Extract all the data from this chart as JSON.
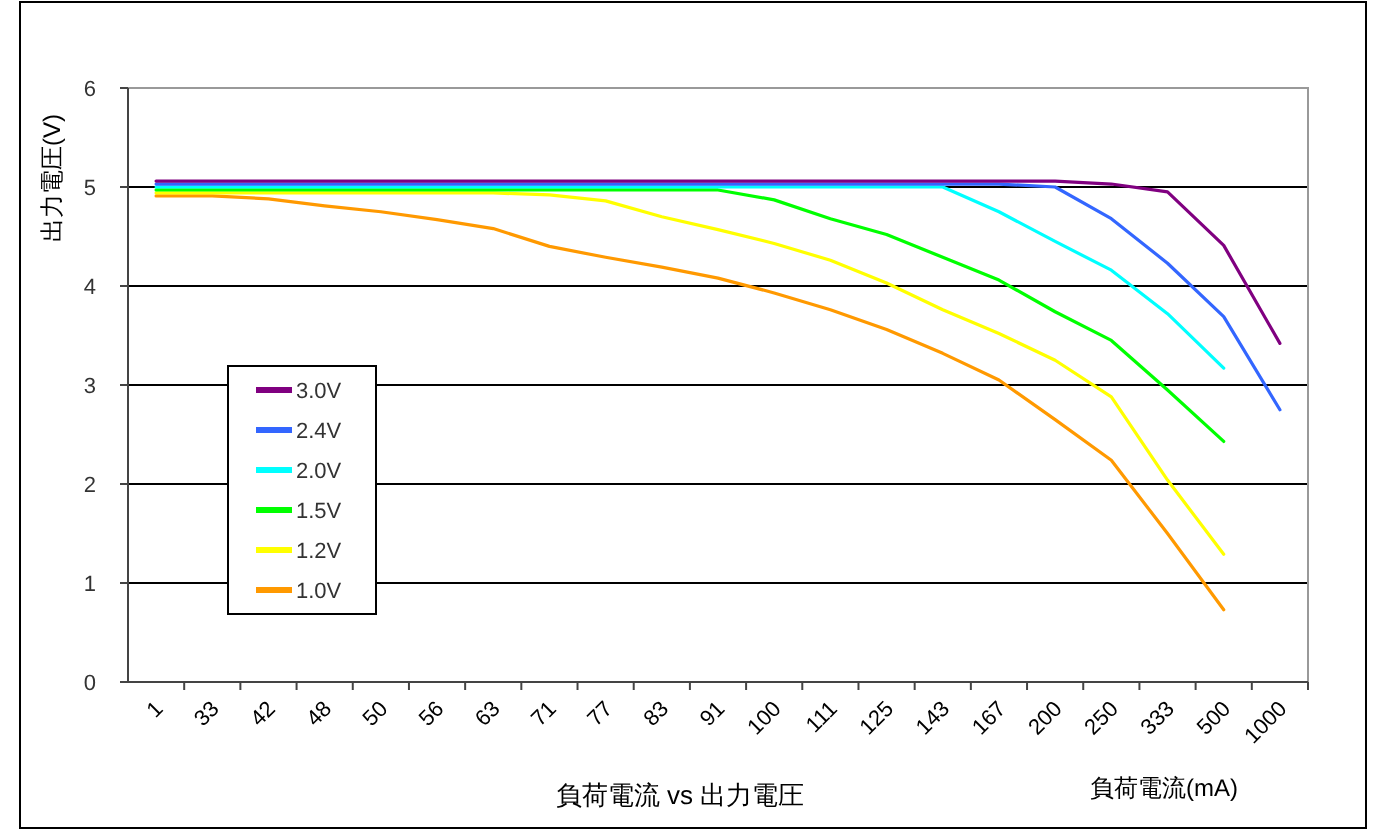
{
  "chart_data": {
    "type": "line",
    "title": "負荷電流 vs 出力電圧",
    "xlabel": "負荷電流(mA)",
    "ylabel": "出力電圧(V)",
    "categories": [
      "1",
      "33",
      "42",
      "48",
      "50",
      "56",
      "63",
      "71",
      "77",
      "83",
      "91",
      "100",
      "111",
      "125",
      "143",
      "167",
      "200",
      "250",
      "333",
      "500",
      "1000"
    ],
    "ylim": [
      0,
      6
    ],
    "yticks": [
      0,
      1,
      2,
      3,
      4,
      5,
      6
    ],
    "grid": "y",
    "legend": "bottom left",
    "marker": "none",
    "line_style": "solid",
    "series": [
      {
        "name": "3.0V",
        "color": "#800080",
        "values": [
          5.06,
          5.06,
          5.06,
          5.06,
          5.06,
          5.06,
          5.06,
          5.06,
          5.06,
          5.06,
          5.06,
          5.06,
          5.06,
          5.06,
          5.06,
          5.06,
          5.06,
          5.03,
          4.95,
          4.41,
          3.42
        ]
      },
      {
        "name": "2.4V",
        "color": "#3366ff",
        "values": [
          5.03,
          5.03,
          5.03,
          5.03,
          5.03,
          5.03,
          5.03,
          5.03,
          5.03,
          5.03,
          5.03,
          5.03,
          5.03,
          5.03,
          5.03,
          5.03,
          5.0,
          4.68,
          4.23,
          3.69,
          2.75
        ]
      },
      {
        "name": "2.0V",
        "color": "#00ffff",
        "values": [
          5.0,
          5.0,
          5.0,
          5.0,
          5.0,
          5.0,
          5.0,
          5.0,
          5.0,
          5.0,
          5.0,
          5.0,
          5.0,
          5.0,
          5.0,
          4.75,
          4.45,
          4.16,
          3.72,
          3.17,
          null
        ]
      },
      {
        "name": "1.5V",
        "color": "#00ff00",
        "values": [
          4.97,
          4.97,
          4.97,
          4.97,
          4.97,
          4.97,
          4.97,
          4.97,
          4.97,
          4.97,
          4.97,
          4.87,
          4.68,
          4.52,
          4.29,
          4.06,
          3.74,
          3.45,
          2.95,
          2.43,
          null
        ]
      },
      {
        "name": "1.2V",
        "color": "#ffff00",
        "values": [
          4.94,
          4.94,
          4.94,
          4.94,
          4.94,
          4.94,
          4.94,
          4.92,
          4.86,
          4.7,
          4.57,
          4.43,
          4.26,
          4.03,
          3.76,
          3.52,
          3.25,
          2.88,
          2.04,
          1.29,
          null
        ]
      },
      {
        "name": "1.0V",
        "color": "#ff9900",
        "values": [
          4.91,
          4.91,
          4.88,
          4.81,
          4.75,
          4.67,
          4.58,
          4.4,
          4.29,
          4.19,
          4.08,
          3.93,
          3.76,
          3.56,
          3.32,
          3.05,
          2.65,
          2.24,
          1.5,
          0.73,
          null
        ]
      }
    ]
  }
}
